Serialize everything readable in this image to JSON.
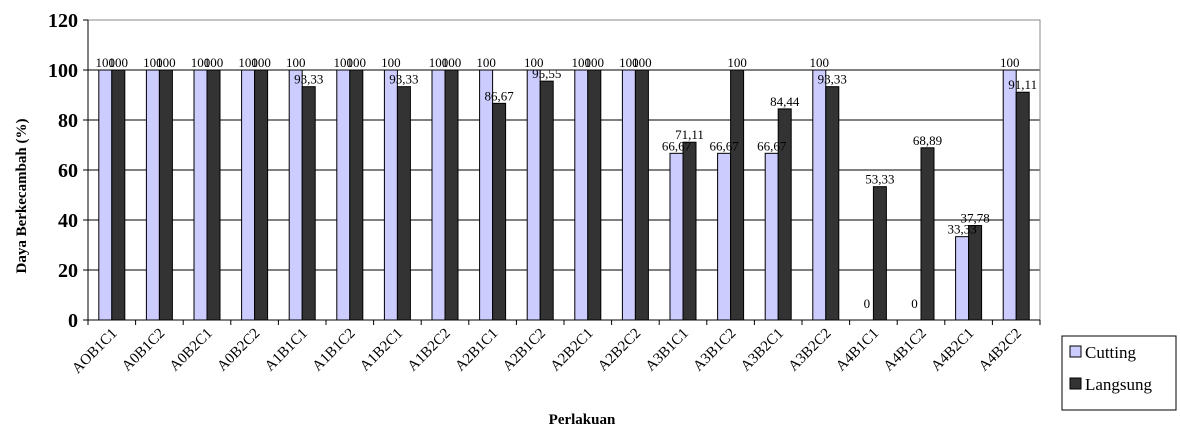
{
  "chart_data": {
    "type": "bar",
    "xlabel": "Perlakuan",
    "ylabel": "Daya Berkecambah (%)",
    "ylim": [
      0,
      120
    ],
    "yticks": [
      "0",
      "20",
      "40",
      "60",
      "80",
      "100",
      "120"
    ],
    "grid": "horizontal",
    "legend_placement": "bottom-right",
    "categories": [
      "AOB1C1",
      "A0B1C2",
      "A0B2C1",
      "A0B2C2",
      "A1B1C1",
      "A1B1C2",
      "A1B2C1",
      "A1B2C2",
      "A2B1C1",
      "A2B1C2",
      "A2B2C1",
      "A2B2C2",
      "A3B1C1",
      "A3B1C2",
      "A3B2C1",
      "A3B2C2",
      "A4B1C1",
      "A4B1C2",
      "A4B2C1",
      "A4B2C2"
    ],
    "series": [
      {
        "name": "Cutting",
        "color": "#ccccff",
        "values": [
          100,
          100,
          100,
          100,
          100,
          100,
          100,
          100,
          100,
          100,
          100,
          100,
          66.67,
          66.67,
          66.67,
          100,
          0,
          0,
          33.33,
          100
        ],
        "labels": [
          "100",
          "100",
          "100",
          "100",
          "100",
          "100",
          "100",
          "100",
          "100",
          "100",
          "100",
          "100",
          "66,67",
          "66,67",
          "66,67",
          "100",
          "0",
          "0",
          "33,33",
          "100"
        ]
      },
      {
        "name": "Langsung",
        "color": "#333333",
        "values": [
          100,
          100,
          100,
          100,
          93.33,
          100,
          93.33,
          100,
          86.67,
          95.55,
          100,
          100,
          71.11,
          100,
          84.44,
          93.33,
          53.33,
          68.89,
          37.78,
          91.11
        ],
        "labels": [
          "100",
          "100",
          "100",
          "100",
          "93,33",
          "100",
          "93,33",
          "100",
          "86,67",
          "95,55",
          "100",
          "100",
          "71,11",
          "100",
          "84,44",
          "93,33",
          "53,33",
          "68,89",
          "37,78",
          "91,11"
        ]
      }
    ]
  }
}
